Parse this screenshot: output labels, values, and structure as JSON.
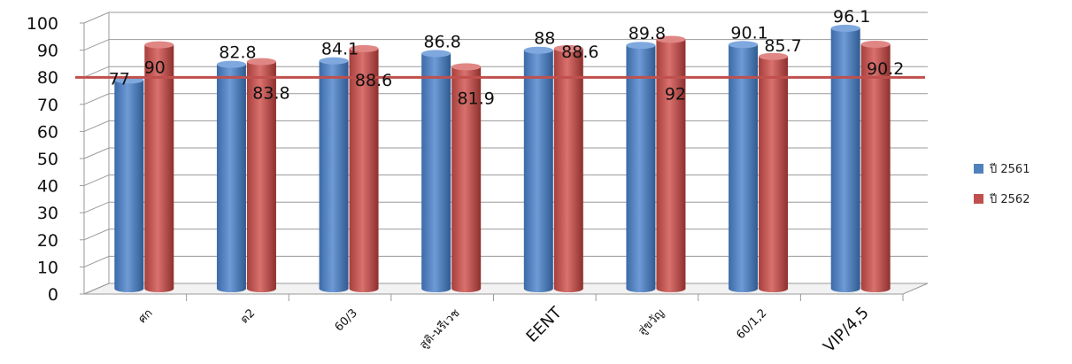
{
  "chart_data": {
    "type": "bar",
    "categories": [
      "ศก",
      "ต2",
      "60/3",
      "สูติ-นรีเวช",
      "EENT",
      "สู่ขวัญ",
      "60/1,2",
      "VIP/4,5"
    ],
    "series": [
      {
        "name": "ปี 2561",
        "values": [
          77,
          82.8,
          84.1,
          86.8,
          88,
          89.8,
          90.1,
          96.1
        ],
        "color": "#4f81bd"
      },
      {
        "name": "ปี 2562",
        "values": [
          90,
          83.8,
          88.6,
          81.9,
          88.6,
          92,
          85.7,
          90.2
        ],
        "color": "#c0504d"
      }
    ],
    "target_line": 78,
    "target_line_color": "#c0504d",
    "ylim": [
      0,
      100
    ],
    "y_ticks": [
      "0",
      "10",
      "20",
      "30",
      "40",
      "50",
      "60",
      "70",
      "80",
      "90",
      "100"
    ],
    "grid": true,
    "legend_position": "right"
  }
}
